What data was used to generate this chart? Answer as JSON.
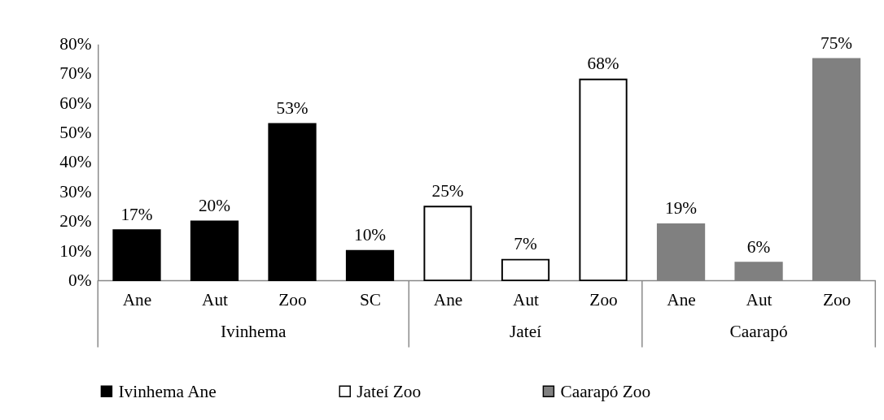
{
  "chart_data": {
    "type": "bar",
    "categories": [
      "Ane",
      "Aut",
      "Zoo",
      "SC",
      "Ane",
      "Aut",
      "Zoo",
      "Ane",
      "Aut",
      "Zoo"
    ],
    "series": [
      {
        "name": "Ivinhema Ane",
        "color": "#000000",
        "values": [
          17,
          20,
          53,
          10,
          null,
          null,
          null,
          null,
          null,
          null
        ],
        "value_labels": [
          "17%",
          "20%",
          "53%",
          "10%",
          null,
          null,
          null,
          null,
          null,
          null
        ]
      },
      {
        "name": "Jateí Zoo",
        "color": "#ffffff",
        "values": [
          null,
          null,
          null,
          null,
          25,
          7,
          68,
          null,
          null,
          null
        ],
        "value_labels": [
          null,
          null,
          null,
          null,
          "25%",
          "7%",
          "68%",
          null,
          null,
          null
        ]
      },
      {
        "name": "Caarapó Zoo",
        "color": "#808080",
        "values": [
          null,
          null,
          null,
          null,
          null,
          null,
          null,
          19,
          6,
          75
        ],
        "value_labels": [
          null,
          null,
          null,
          null,
          null,
          null,
          null,
          "19%",
          "6%",
          "75%"
        ]
      }
    ],
    "annotations": [
      "Ivinhema",
      "Jateí",
      "Caarapó"
    ],
    "ylim": [
      0,
      80
    ],
    "yticks": [
      {
        "value": 0,
        "label": "0%"
      },
      {
        "value": 10,
        "label": "10%"
      },
      {
        "value": 20,
        "label": "20%"
      },
      {
        "value": 30,
        "label": "30%"
      },
      {
        "value": 40,
        "label": "40%"
      },
      {
        "value": 50,
        "label": "50%"
      },
      {
        "value": 60,
        "label": "60%"
      },
      {
        "value": 70,
        "label": "70%"
      },
      {
        "value": 80,
        "label": "80%"
      }
    ],
    "legend": "bottom"
  }
}
